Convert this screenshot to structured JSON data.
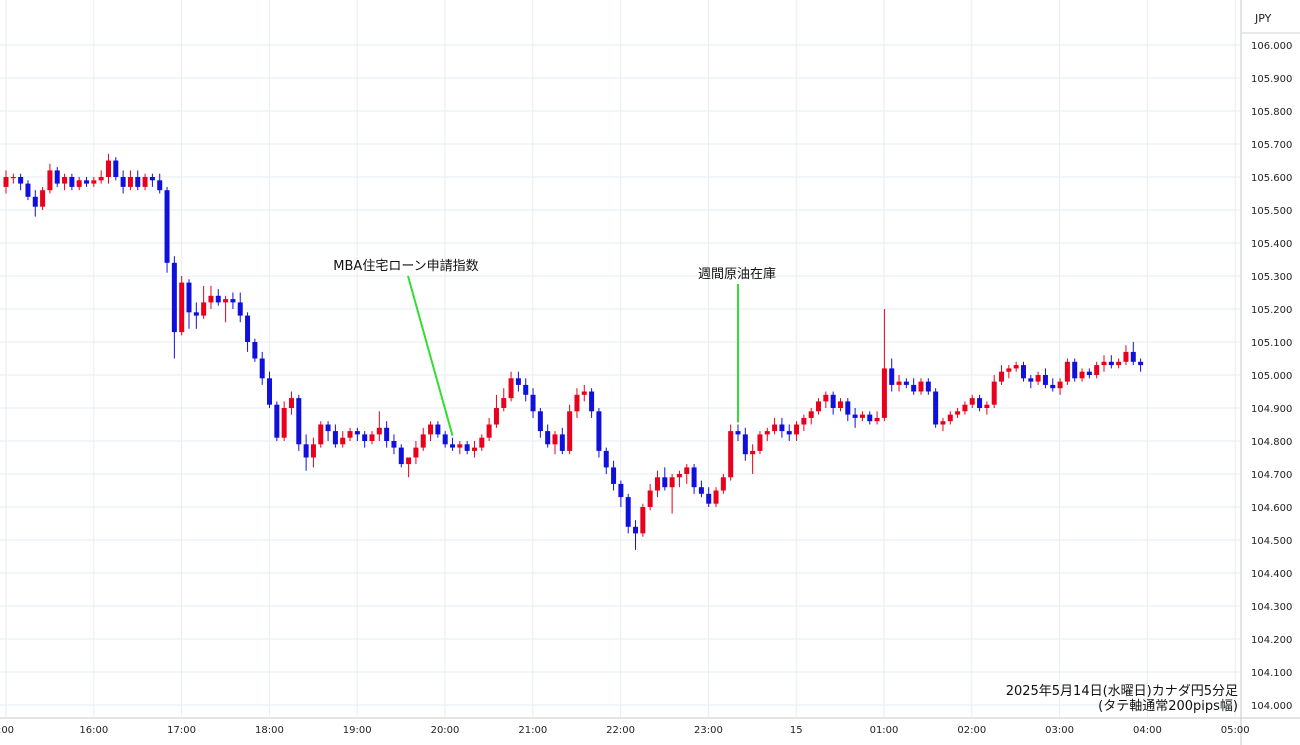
{
  "chart_data": {
    "type": "candlestick",
    "currency_label": "JPY",
    "caption_line1": "2025年5月14日(水曜日)カナダ円5分足",
    "caption_line2": "(タテ軸通常200pips幅)",
    "ylim": [
      104.0,
      106.0
    ],
    "y_ticks": [
      "106.000",
      "105.900",
      "105.800",
      "105.700",
      "105.600",
      "105.500",
      "105.400",
      "105.300",
      "105.200",
      "105.100",
      "105.000",
      "104.900",
      "104.800",
      "104.700",
      "104.600",
      "104.500",
      "104.400",
      "104.300",
      "104.200",
      "104.100",
      "104.000"
    ],
    "x_ticks": [
      ":00",
      "16:00",
      "17:00",
      "18:00",
      "19:00",
      "20:00",
      "21:00",
      "22:00",
      "23:00",
      "15",
      "01:00",
      "02:00",
      "03:00",
      "04:00",
      "05:00"
    ],
    "up_color": "#e8001c",
    "down_color": "#1010dd",
    "annotation_color": "#33dd33",
    "annotations": [
      {
        "text": "MBA住宅ローン申請指数",
        "candle_index": 61
      },
      {
        "text": "週間原油在庫",
        "candle_index": 100
      }
    ],
    "candles": [
      [
        105.57,
        105.62,
        105.55,
        105.6
      ],
      [
        105.6,
        105.61,
        105.58,
        105.6
      ],
      [
        105.6,
        105.61,
        105.56,
        105.58
      ],
      [
        105.58,
        105.59,
        105.53,
        105.54
      ],
      [
        105.54,
        105.56,
        105.48,
        105.51
      ],
      [
        105.51,
        105.57,
        105.5,
        105.56
      ],
      [
        105.56,
        105.64,
        105.55,
        105.62
      ],
      [
        105.62,
        105.63,
        105.57,
        105.58
      ],
      [
        105.58,
        105.61,
        105.56,
        105.6
      ],
      [
        105.6,
        105.61,
        105.56,
        105.57
      ],
      [
        105.57,
        105.6,
        105.56,
        105.59
      ],
      [
        105.59,
        105.6,
        105.57,
        105.58
      ],
      [
        105.58,
        105.6,
        105.57,
        105.59
      ],
      [
        105.59,
        105.62,
        105.58,
        105.6
      ],
      [
        105.6,
        105.67,
        105.58,
        105.65
      ],
      [
        105.65,
        105.66,
        105.59,
        105.6
      ],
      [
        105.6,
        105.62,
        105.55,
        105.57
      ],
      [
        105.57,
        105.62,
        105.56,
        105.6
      ],
      [
        105.6,
        105.62,
        105.56,
        105.57
      ],
      [
        105.57,
        105.61,
        105.56,
        105.6
      ],
      [
        105.6,
        105.61,
        105.57,
        105.59
      ],
      [
        105.59,
        105.61,
        105.55,
        105.56
      ],
      [
        105.56,
        105.57,
        105.31,
        105.34
      ],
      [
        105.34,
        105.36,
        105.05,
        105.13
      ],
      [
        105.13,
        105.3,
        105.12,
        105.28
      ],
      [
        105.28,
        105.29,
        105.14,
        105.19
      ],
      [
        105.19,
        105.22,
        105.14,
        105.18
      ],
      [
        105.18,
        105.27,
        105.17,
        105.22
      ],
      [
        105.22,
        105.27,
        105.2,
        105.24
      ],
      [
        105.24,
        105.26,
        105.21,
        105.22
      ],
      [
        105.22,
        105.24,
        105.16,
        105.23
      ],
      [
        105.23,
        105.25,
        105.2,
        105.22
      ],
      [
        105.22,
        105.25,
        105.16,
        105.18
      ],
      [
        105.18,
        105.19,
        105.07,
        105.1
      ],
      [
        105.1,
        105.11,
        105.04,
        105.05
      ],
      [
        105.05,
        105.07,
        104.97,
        104.99
      ],
      [
        104.99,
        105.01,
        104.9,
        104.91
      ],
      [
        104.91,
        104.92,
        104.8,
        104.81
      ],
      [
        104.81,
        104.92,
        104.8,
        104.9
      ],
      [
        104.9,
        104.95,
        104.88,
        104.93
      ],
      [
        104.93,
        104.94,
        104.77,
        104.79
      ],
      [
        104.79,
        104.82,
        104.71,
        104.75
      ],
      [
        104.75,
        104.81,
        104.72,
        104.79
      ],
      [
        104.79,
        104.86,
        104.78,
        104.85
      ],
      [
        104.85,
        104.86,
        104.8,
        104.83
      ],
      [
        104.83,
        104.85,
        104.78,
        104.79
      ],
      [
        104.79,
        104.83,
        104.78,
        104.81
      ],
      [
        104.81,
        104.84,
        104.8,
        104.83
      ],
      [
        104.83,
        104.84,
        104.8,
        104.82
      ],
      [
        104.82,
        104.83,
        104.78,
        104.8
      ],
      [
        104.8,
        104.83,
        104.79,
        104.82
      ],
      [
        104.82,
        104.89,
        104.8,
        104.84
      ],
      [
        104.84,
        104.86,
        104.78,
        104.8
      ],
      [
        104.8,
        104.82,
        104.76,
        104.78
      ],
      [
        104.78,
        104.79,
        104.72,
        104.73
      ],
      [
        104.73,
        104.75,
        104.69,
        104.75
      ],
      [
        104.75,
        104.8,
        104.73,
        104.78
      ],
      [
        104.78,
        104.84,
        104.77,
        104.82
      ],
      [
        104.82,
        104.86,
        104.8,
        104.85
      ],
      [
        104.85,
        104.86,
        104.81,
        104.82
      ],
      [
        104.82,
        104.83,
        104.78,
        104.79
      ],
      [
        104.79,
        104.81,
        104.77,
        104.78
      ],
      [
        104.78,
        104.8,
        104.76,
        104.79
      ],
      [
        104.79,
        104.8,
        104.76,
        104.77
      ],
      [
        104.77,
        104.8,
        104.75,
        104.78
      ],
      [
        104.78,
        104.82,
        104.77,
        104.81
      ],
      [
        104.81,
        104.87,
        104.8,
        104.85
      ],
      [
        104.85,
        104.94,
        104.84,
        104.9
      ],
      [
        104.9,
        104.96,
        104.89,
        104.93
      ],
      [
        104.93,
        105.01,
        104.92,
        104.99
      ],
      [
        104.99,
        105.01,
        104.95,
        104.97
      ],
      [
        104.97,
        104.99,
        104.92,
        104.94
      ],
      [
        104.94,
        104.96,
        104.87,
        104.89
      ],
      [
        104.89,
        104.9,
        104.81,
        104.83
      ],
      [
        104.83,
        104.85,
        104.78,
        104.79
      ],
      [
        104.79,
        104.83,
        104.76,
        104.82
      ],
      [
        104.82,
        104.84,
        104.76,
        104.77
      ],
      [
        104.77,
        104.91,
        104.76,
        104.89
      ],
      [
        104.89,
        104.96,
        104.87,
        104.94
      ],
      [
        104.94,
        104.97,
        104.92,
        104.95
      ],
      [
        104.95,
        104.96,
        104.87,
        104.89
      ],
      [
        104.89,
        104.9,
        104.75,
        104.77
      ],
      [
        104.77,
        104.78,
        104.7,
        104.72
      ],
      [
        104.72,
        104.74,
        104.65,
        104.67
      ],
      [
        104.67,
        104.68,
        104.6,
        104.63
      ],
      [
        104.63,
        104.64,
        104.52,
        104.54
      ],
      [
        104.54,
        104.56,
        104.47,
        104.52
      ],
      [
        104.52,
        104.61,
        104.51,
        104.6
      ],
      [
        104.6,
        104.67,
        104.59,
        104.65
      ],
      [
        104.65,
        104.71,
        104.63,
        104.69
      ],
      [
        104.69,
        104.72,
        104.65,
        104.66
      ],
      [
        104.66,
        104.7,
        104.58,
        104.69
      ],
      [
        104.69,
        104.71,
        104.66,
        104.7
      ],
      [
        104.7,
        104.73,
        104.67,
        104.72
      ],
      [
        104.72,
        104.73,
        104.64,
        104.66
      ],
      [
        104.66,
        104.68,
        104.63,
        104.64
      ],
      [
        104.64,
        104.66,
        104.6,
        104.61
      ],
      [
        104.61,
        104.66,
        104.6,
        104.65
      ],
      [
        104.65,
        104.7,
        104.64,
        104.69
      ],
      [
        104.69,
        104.85,
        104.68,
        104.83
      ],
      [
        104.83,
        104.85,
        104.8,
        104.82
      ],
      [
        104.82,
        104.84,
        104.74,
        104.76
      ],
      [
        104.76,
        104.79,
        104.7,
        104.77
      ],
      [
        104.77,
        104.83,
        104.76,
        104.82
      ],
      [
        104.82,
        104.84,
        104.8,
        104.83
      ],
      [
        104.83,
        104.87,
        104.82,
        104.85
      ],
      [
        104.85,
        104.87,
        104.81,
        104.83
      ],
      [
        104.83,
        104.85,
        104.8,
        104.82
      ],
      [
        104.82,
        104.86,
        104.8,
        104.85
      ],
      [
        104.85,
        104.88,
        104.83,
        104.87
      ],
      [
        104.87,
        104.9,
        104.85,
        104.89
      ],
      [
        104.89,
        104.93,
        104.88,
        104.92
      ],
      [
        104.92,
        104.95,
        104.9,
        104.94
      ],
      [
        104.94,
        104.95,
        104.88,
        104.9
      ],
      [
        104.9,
        104.93,
        104.89,
        104.92
      ],
      [
        104.92,
        104.93,
        104.86,
        104.88
      ],
      [
        104.88,
        104.9,
        104.84,
        104.87
      ],
      [
        104.87,
        104.89,
        104.86,
        104.88
      ],
      [
        104.88,
        104.89,
        104.85,
        104.86
      ],
      [
        104.86,
        104.89,
        104.85,
        104.87
      ],
      [
        104.87,
        105.2,
        104.86,
        105.02
      ],
      [
        105.02,
        105.05,
        104.95,
        104.97
      ],
      [
        104.97,
        105.0,
        104.95,
        104.98
      ],
      [
        104.98,
        104.99,
        104.96,
        104.97
      ],
      [
        104.97,
        104.99,
        104.94,
        104.95
      ],
      [
        104.95,
        104.99,
        104.94,
        104.98
      ],
      [
        104.98,
        104.99,
        104.94,
        104.95
      ],
      [
        104.95,
        104.96,
        104.84,
        104.85
      ],
      [
        104.85,
        104.87,
        104.83,
        104.86
      ],
      [
        104.86,
        104.89,
        104.85,
        104.88
      ],
      [
        104.88,
        104.9,
        104.87,
        104.89
      ],
      [
        104.89,
        104.92,
        104.88,
        104.91
      ],
      [
        104.91,
        104.94,
        104.9,
        104.93
      ],
      [
        104.93,
        104.94,
        104.89,
        104.9
      ],
      [
        104.9,
        104.92,
        104.88,
        104.91
      ],
      [
        104.91,
        105.0,
        104.9,
        104.98
      ],
      [
        104.98,
        105.03,
        104.97,
        105.01
      ],
      [
        105.01,
        105.03,
        104.99,
        105.02
      ],
      [
        105.02,
        105.04,
        105.01,
        105.03
      ],
      [
        105.03,
        105.04,
        104.98,
        104.99
      ],
      [
        104.99,
        105.0,
        104.96,
        104.98
      ],
      [
        104.98,
        105.01,
        104.97,
        105.0
      ],
      [
        105.0,
        105.02,
        104.96,
        104.97
      ],
      [
        104.97,
        104.99,
        104.95,
        104.96
      ],
      [
        104.96,
        104.99,
        104.94,
        104.98
      ],
      [
        104.98,
        105.05,
        104.97,
        105.04
      ],
      [
        105.04,
        105.05,
        104.98,
        104.99
      ],
      [
        104.99,
        105.02,
        104.98,
        105.01
      ],
      [
        105.01,
        105.02,
        104.99,
        105.0
      ],
      [
        105.0,
        105.04,
        104.99,
        105.03
      ],
      [
        105.03,
        105.06,
        105.01,
        105.04
      ],
      [
        105.04,
        105.06,
        105.02,
        105.03
      ],
      [
        105.03,
        105.05,
        105.02,
        105.04
      ],
      [
        105.04,
        105.09,
        105.03,
        105.07
      ],
      [
        105.07,
        105.1,
        105.03,
        105.04
      ],
      [
        105.04,
        105.05,
        105.01,
        105.03
      ]
    ]
  }
}
